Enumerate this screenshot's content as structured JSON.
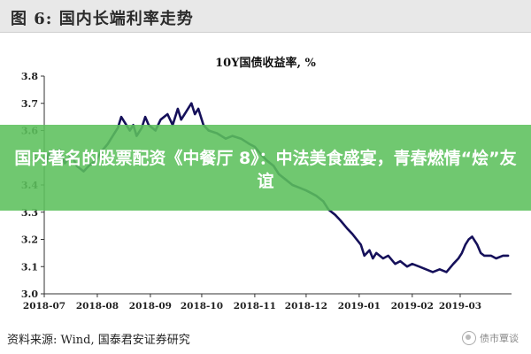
{
  "figure": {
    "title": "图 6:  国内长端利率走势",
    "source": "资料来源:  Wind, 国泰君安证券研究",
    "watermark": "债市覃谈"
  },
  "banner": {
    "text": "国内著名的股票配资《中餐厅 8》：中法美食盛宴，青春燃情“烩”友谊",
    "color": "#5cc05c"
  },
  "chart_data": {
    "type": "line",
    "title": "10Y国债收益率, %",
    "ylim": [
      3.0,
      3.8
    ],
    "yticks": [
      "3.0",
      "3.1",
      "3.2",
      "3.3",
      "3.4",
      "3.5",
      "3.6",
      "3.7",
      "3.8"
    ],
    "xlim": [
      "2018-07-01",
      "2019-03-31"
    ],
    "xticks": [
      {
        "date": "2018-07-01",
        "label": "2018-07"
      },
      {
        "date": "2018-08-01",
        "label": "2018-08"
      },
      {
        "date": "2018-09-01",
        "label": "2018-09"
      },
      {
        "date": "2018-10-01",
        "label": "2018-10"
      },
      {
        "date": "2018-11-01",
        "label": "2018-11"
      },
      {
        "date": "2018-12-01",
        "label": "2018-12"
      },
      {
        "date": "2019-01-01",
        "label": "2019-01"
      },
      {
        "date": "2019-02-01",
        "label": "2019-02"
      },
      {
        "date": "2019-03-01",
        "label": "2019-03"
      }
    ],
    "grid": false,
    "line_color": "#15105a",
    "series": [
      {
        "values": [
          [
            "2018-07-02",
            3.48
          ],
          [
            "2018-07-04",
            3.52
          ],
          [
            "2018-07-06",
            3.5
          ],
          [
            "2018-07-10",
            3.53
          ],
          [
            "2018-07-13",
            3.48
          ],
          [
            "2018-07-17",
            3.51
          ],
          [
            "2018-07-20",
            3.47
          ],
          [
            "2018-07-24",
            3.45
          ],
          [
            "2018-07-27",
            3.47
          ],
          [
            "2018-07-31",
            3.49
          ],
          [
            "2018-08-03",
            3.52
          ],
          [
            "2018-08-07",
            3.55
          ],
          [
            "2018-08-10",
            3.58
          ],
          [
            "2018-08-13",
            3.61
          ],
          [
            "2018-08-15",
            3.65
          ],
          [
            "2018-08-17",
            3.63
          ],
          [
            "2018-08-20",
            3.6
          ],
          [
            "2018-08-22",
            3.62
          ],
          [
            "2018-08-24",
            3.58
          ],
          [
            "2018-08-27",
            3.61
          ],
          [
            "2018-08-29",
            3.65
          ],
          [
            "2018-08-31",
            3.62
          ],
          [
            "2018-09-04",
            3.6
          ],
          [
            "2018-09-07",
            3.64
          ],
          [
            "2018-09-11",
            3.66
          ],
          [
            "2018-09-14",
            3.62
          ],
          [
            "2018-09-17",
            3.68
          ],
          [
            "2018-09-19",
            3.64
          ],
          [
            "2018-09-21",
            3.66
          ],
          [
            "2018-09-25",
            3.7
          ],
          [
            "2018-09-27",
            3.66
          ],
          [
            "2018-09-29",
            3.68
          ],
          [
            "2018-10-02",
            3.62
          ],
          [
            "2018-10-05",
            3.6
          ],
          [
            "2018-10-10",
            3.59
          ],
          [
            "2018-10-15",
            3.57
          ],
          [
            "2018-10-19",
            3.58
          ],
          [
            "2018-10-24",
            3.57
          ],
          [
            "2018-10-29",
            3.55
          ],
          [
            "2018-11-01",
            3.54
          ],
          [
            "2018-11-05",
            3.51
          ],
          [
            "2018-11-08",
            3.49
          ],
          [
            "2018-11-12",
            3.47
          ],
          [
            "2018-11-15",
            3.44
          ],
          [
            "2018-11-19",
            3.42
          ],
          [
            "2018-11-23",
            3.4
          ],
          [
            "2018-11-27",
            3.39
          ],
          [
            "2018-12-01",
            3.38
          ],
          [
            "2018-12-04",
            3.37
          ],
          [
            "2018-12-07",
            3.36
          ],
          [
            "2018-12-11",
            3.34
          ],
          [
            "2018-12-14",
            3.31
          ],
          [
            "2018-12-18",
            3.29
          ],
          [
            "2018-12-21",
            3.27
          ],
          [
            "2018-12-25",
            3.24
          ],
          [
            "2018-12-28",
            3.22
          ],
          [
            "2019-01-02",
            3.18
          ],
          [
            "2019-01-04",
            3.14
          ],
          [
            "2019-01-07",
            3.16
          ],
          [
            "2019-01-09",
            3.13
          ],
          [
            "2019-01-11",
            3.15
          ],
          [
            "2019-01-15",
            3.13
          ],
          [
            "2019-01-18",
            3.14
          ],
          [
            "2019-01-22",
            3.11
          ],
          [
            "2019-01-25",
            3.12
          ],
          [
            "2019-01-29",
            3.1
          ],
          [
            "2019-02-01",
            3.11
          ],
          [
            "2019-02-05",
            3.1
          ],
          [
            "2019-02-09",
            3.09
          ],
          [
            "2019-02-13",
            3.08
          ],
          [
            "2019-02-17",
            3.09
          ],
          [
            "2019-02-21",
            3.08
          ],
          [
            "2019-02-25",
            3.11
          ],
          [
            "2019-02-28",
            3.13
          ],
          [
            "2019-03-02",
            3.15
          ],
          [
            "2019-03-04",
            3.18
          ],
          [
            "2019-03-06",
            3.2
          ],
          [
            "2019-03-08",
            3.21
          ],
          [
            "2019-03-11",
            3.18
          ],
          [
            "2019-03-13",
            3.15
          ],
          [
            "2019-03-15",
            3.14
          ],
          [
            "2019-03-19",
            3.14
          ],
          [
            "2019-03-22",
            3.13
          ],
          [
            "2019-03-26",
            3.14
          ],
          [
            "2019-03-29",
            3.14
          ]
        ]
      }
    ]
  }
}
